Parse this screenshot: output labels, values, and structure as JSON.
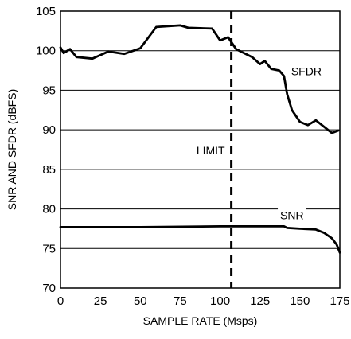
{
  "chart_data": {
    "type": "line",
    "xlabel": "SAMPLE RATE (Msps)",
    "ylabel": "SNR AND SFDR (dBFS)",
    "xlim": [
      0,
      175
    ],
    "ylim": [
      70,
      105
    ],
    "x_ticks": [
      0,
      25,
      50,
      75,
      100,
      125,
      150,
      175
    ],
    "y_ticks": [
      70,
      75,
      80,
      85,
      90,
      95,
      100,
      105
    ],
    "grid": "horizontal",
    "series": [
      {
        "name": "SFDR",
        "x": [
          0,
          2,
          6,
          10,
          20,
          30,
          40,
          50,
          60,
          75,
          80,
          95,
          100,
          105,
          110,
          120,
          125,
          128,
          132,
          137,
          140,
          142,
          145,
          150,
          155,
          160,
          170,
          174
        ],
        "y": [
          100.4,
          99.7,
          100.2,
          99.2,
          99.0,
          99.9,
          99.6,
          100.3,
          103.0,
          103.2,
          102.9,
          102.8,
          101.3,
          101.7,
          100.2,
          99.2,
          98.3,
          98.7,
          97.7,
          97.5,
          96.8,
          94.5,
          92.5,
          91.0,
          90.6,
          91.2,
          89.6,
          89.9
        ]
      },
      {
        "name": "SNR",
        "x": [
          0,
          50,
          100,
          130,
          140,
          142,
          150,
          160,
          165,
          170,
          173,
          175
        ],
        "y": [
          77.7,
          77.7,
          77.8,
          77.8,
          77.8,
          77.6,
          77.5,
          77.4,
          77.0,
          76.3,
          75.5,
          74.5
        ]
      }
    ],
    "limit": {
      "x": 107,
      "label": "LIMIT"
    },
    "series_labels": [
      {
        "text": "SFDR",
        "x": 154,
        "y": 97.4
      },
      {
        "text": "SNR",
        "x": 145,
        "y": 79.2
      }
    ],
    "colors": {
      "line": "#000000",
      "grid": "#000000",
      "background": "#ffffff"
    }
  }
}
